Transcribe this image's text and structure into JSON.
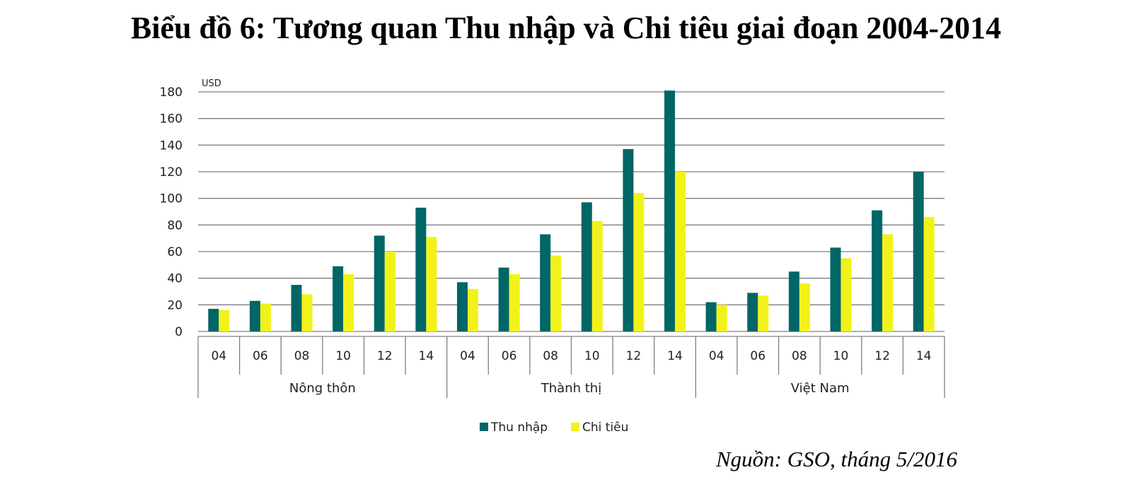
{
  "title": "Biểu đồ 6: Tương quan Thu nhập và Chi tiêu giai đoạn 2004-2014",
  "source": "Nguồn: GSO, tháng 5/2016",
  "colors": {
    "income": "#006666",
    "spending": "#f2f21a",
    "grid": "#7f7f7f"
  },
  "chart_data": {
    "type": "bar",
    "unit": "USD",
    "ylim": [
      0,
      180
    ],
    "yticks": [
      0,
      20,
      40,
      60,
      80,
      100,
      120,
      140,
      160,
      180
    ],
    "grid": true,
    "legend_position": "bottom",
    "groups": [
      "Nông thôn",
      "Thành thị",
      "Việt Nam"
    ],
    "categories": [
      "04",
      "06",
      "08",
      "10",
      "12",
      "14",
      "04",
      "06",
      "08",
      "10",
      "12",
      "14",
      "04",
      "06",
      "08",
      "10",
      "12",
      "14"
    ],
    "series": [
      {
        "name": "Thu nhập",
        "values": [
          17,
          23,
          35,
          49,
          72,
          93,
          37,
          48,
          73,
          97,
          137,
          181,
          22,
          29,
          45,
          63,
          91,
          120
        ]
      },
      {
        "name": "Chi tiêu",
        "values": [
          16,
          21,
          28,
          43,
          60,
          71,
          32,
          43,
          57,
          83,
          104,
          120,
          20,
          27,
          36,
          55,
          73,
          86
        ]
      }
    ]
  }
}
